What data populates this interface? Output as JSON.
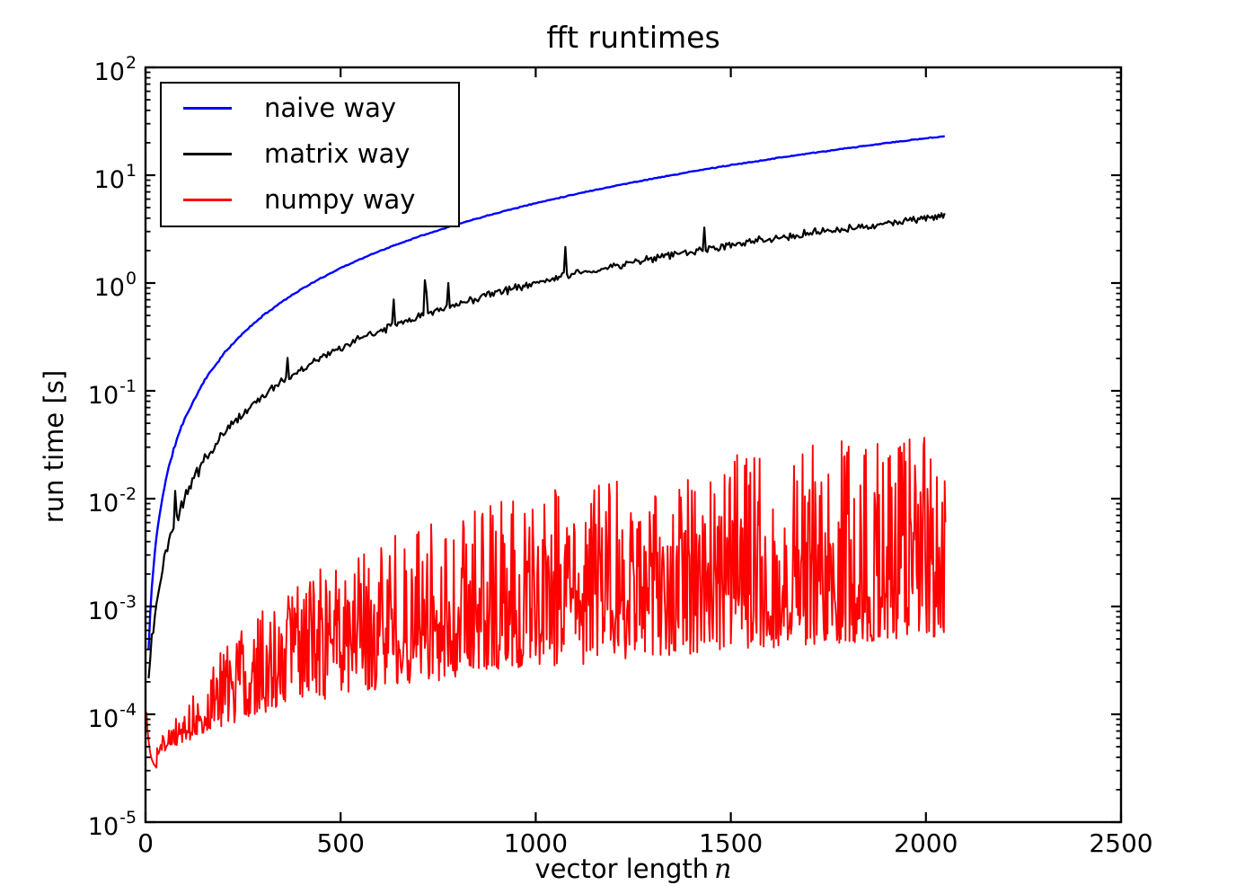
{
  "figure": {
    "title": "fft runtimes",
    "xlabel_text": "vector length",
    "xlabel_math": "n",
    "ylabel": "run time [s]",
    "background": "#ffffff"
  },
  "chart_data": {
    "type": "line",
    "title": "fft runtimes",
    "xlabel": "vector length n",
    "ylabel": "run time [s]",
    "grid": false,
    "x_axis": {
      "scale": "linear",
      "min": 0,
      "max": 2500,
      "ticks": [
        0,
        500,
        1000,
        1500,
        2000,
        2500
      ]
    },
    "y_axis": {
      "scale": "log",
      "min_exp": -5,
      "max_exp": 2,
      "tick_exponents": [
        2,
        1,
        0,
        -1,
        -2,
        -3,
        -4,
        -5
      ]
    },
    "legend": {
      "position": "upper left",
      "entries": [
        {
          "label": "naive way",
          "color": "#0000ff"
        },
        {
          "label": "matrix way",
          "color": "#000000"
        },
        {
          "label": "numpy way",
          "color": "#ff0000"
        }
      ]
    },
    "series": [
      {
        "name": "naive way",
        "color": "#0000ff",
        "style": "smooth_curve",
        "line_width": 2.4,
        "seed": 11,
        "noise_log10": 0.005,
        "start_noise_log10": 0.03,
        "x": [
          8,
          12,
          16,
          20,
          25,
          30,
          40,
          50,
          65,
          80,
          100,
          150,
          200,
          250,
          300,
          350,
          400,
          450,
          500,
          550,
          600,
          650,
          700,
          750,
          800,
          850,
          900,
          950,
          1000,
          1050,
          1100,
          1150,
          1200,
          1250,
          1300,
          1350,
          1400,
          1450,
          1500,
          1550,
          1600,
          1650,
          1700,
          1750,
          1800,
          1850,
          1900,
          1950,
          2000,
          2050
        ],
        "y": [
          0.0004,
          0.00084,
          0.00146,
          0.00225,
          0.00349,
          0.005,
          0.0089,
          0.0138,
          0.0233,
          0.0353,
          0.0551,
          0.124,
          0.22,
          0.344,
          0.495,
          0.674,
          0.88,
          1.11,
          1.38,
          1.66,
          1.98,
          2.32,
          2.7,
          3.09,
          3.52,
          3.97,
          4.46,
          4.96,
          5.5,
          6.06,
          6.66,
          7.27,
          7.92,
          8.59,
          9.3,
          10.0,
          10.8,
          11.6,
          12.4,
          13.2,
          14.1,
          15.0,
          15.9,
          16.8,
          17.8,
          18.8,
          19.9,
          20.9,
          22.0,
          23.1
        ]
      },
      {
        "name": "matrix way",
        "color": "#000000",
        "style": "noisy_curve",
        "line_width": 2.2,
        "seed": 23,
        "noise_log10": 0.042,
        "start_noise_log10": 0.1,
        "x": [
          8,
          12,
          16,
          20,
          25,
          30,
          40,
          50,
          65,
          80,
          100,
          150,
          200,
          250,
          300,
          350,
          400,
          450,
          500,
          550,
          600,
          650,
          700,
          750,
          800,
          850,
          900,
          950,
          1000,
          1050,
          1100,
          1150,
          1200,
          1250,
          1300,
          1350,
          1400,
          1450,
          1500,
          1550,
          1600,
          1650,
          1700,
          1750,
          1800,
          1850,
          1900,
          1950,
          2000,
          2050
        ],
        "y": [
          0.00028,
          0.00036,
          0.00048,
          0.00062,
          0.00085,
          0.00112,
          0.00182,
          0.00272,
          0.00445,
          0.0066,
          0.0102,
          0.0227,
          0.0402,
          0.0627,
          0.09,
          0.123,
          0.16,
          0.203,
          0.25,
          0.303,
          0.36,
          0.423,
          0.49,
          0.563,
          0.64,
          0.723,
          0.81,
          0.903,
          1.0,
          1.1,
          1.21,
          1.32,
          1.44,
          1.56,
          1.69,
          1.82,
          1.96,
          2.1,
          2.25,
          2.4,
          2.56,
          2.72,
          2.89,
          3.06,
          3.24,
          3.42,
          3.61,
          3.8,
          4.0,
          4.2
        ]
      },
      {
        "name": "numpy way",
        "color": "#ff0000",
        "style": "noise_band",
        "line_width": 1.9,
        "seed": 37,
        "head_x": [
          2,
          3,
          5,
          8,
          12,
          16,
          22,
          28
        ],
        "head_y": [
          0.000105,
          9.5e-05,
          7.2e-05,
          5.6e-05,
          4.4e-05,
          3.8e-05,
          3.4e-05,
          3.2e-05
        ],
        "envelope_x": [
          30,
          100,
          200,
          300,
          400,
          500,
          600,
          700,
          800,
          900,
          1000,
          1100,
          1200,
          1300,
          1400,
          1500,
          1600,
          1700,
          1800,
          1900,
          2000,
          2050
        ],
        "envelope_low": [
          3.9e-05,
          5.5e-05,
          7.8e-05,
          0.000101,
          0.000124,
          0.000147,
          0.00017,
          0.000193,
          0.000216,
          0.000239,
          0.000262,
          0.000285,
          0.000308,
          0.000331,
          0.000354,
          0.000377,
          0.0004,
          0.000423,
          0.000446,
          0.000469,
          0.000492,
          0.000504
        ],
        "envelope_high": [
          5.8e-05,
          0.000115,
          0.00046,
          0.00104,
          0.00184,
          0.00288,
          0.00414,
          0.00564,
          0.00736,
          0.00932,
          0.0115,
          0.0139,
          0.0166,
          0.0194,
          0.0225,
          0.0259,
          0.0294,
          0.0332,
          0.0373,
          0.0415,
          0.046,
          0.0483
        ]
      }
    ]
  }
}
